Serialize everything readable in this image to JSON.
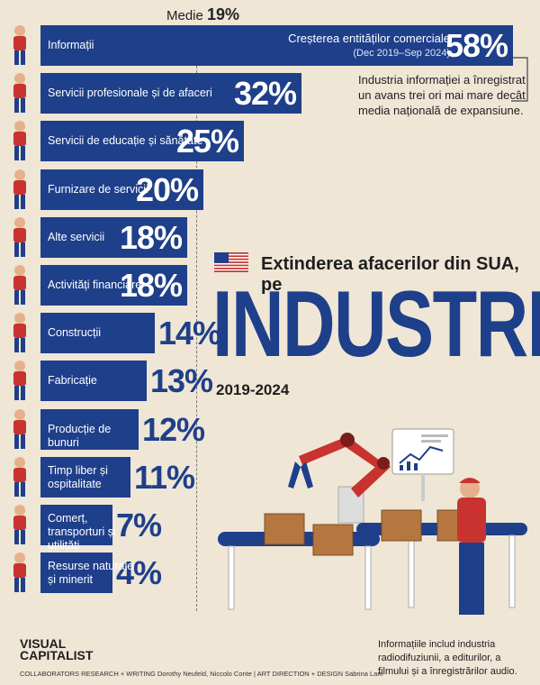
{
  "chart_data": {
    "type": "bar",
    "orientation": "horizontal",
    "title_top": "Extinderea afacerilor din SUA, pe",
    "title_main": "INDUSTRII",
    "subtitle": "2019-2024",
    "median_label": "Medie",
    "median_value": "19%",
    "median": 19,
    "xlim": [
      0,
      60
    ],
    "categories": [
      "Informații",
      "Servicii profesionale și de afaceri",
      "Servicii de educație și sănătate",
      "Furnizare de servicii",
      "Alte servicii",
      "Activități financiare",
      "Construcții",
      "Fabricație",
      "Producție de bunuri",
      "Timp liber și ospitalitate",
      "Comerț, transporturi și utilități",
      "Resurse naturale și minerit"
    ],
    "values": [
      58,
      32,
      25,
      20,
      18,
      18,
      14,
      13,
      12,
      11,
      7,
      4
    ],
    "value_labels": [
      "58%",
      "32%",
      "25%",
      "20%",
      "18%",
      "18%",
      "14%",
      "13%",
      "12%",
      "11%",
      "7%",
      "4%"
    ],
    "top_bar_title": "Creșterea entităților comerciale",
    "top_bar_subtitle": "(Dec 2019–Sep 2024)"
  },
  "note": "Industria informației a înregistrat un avans trei ori mai mare decât media națională de expansiune.",
  "footnote": "Informațiile includ industria radiodifuziunii, a editurilor, a filmului și a înregistrărilor audio.",
  "logo_line1": "VISUAL",
  "logo_line2": "CAPITALIST",
  "credits": "COLLABORATORS  RESEARCH + WRITING Dorothy Neufeld, Niccolo Conte  |  ART DIRECTION + DESIGN Sabrina Lam",
  "colors": {
    "bar": "#1e3f8a",
    "background": "#efe6d6",
    "accent_red": "#c8332f"
  },
  "icons": [
    "flag-usa-icon",
    "worker-icon",
    "robot-arm-icon",
    "conveyor-belt-icon",
    "box-icon",
    "monitor-chart-icon"
  ]
}
